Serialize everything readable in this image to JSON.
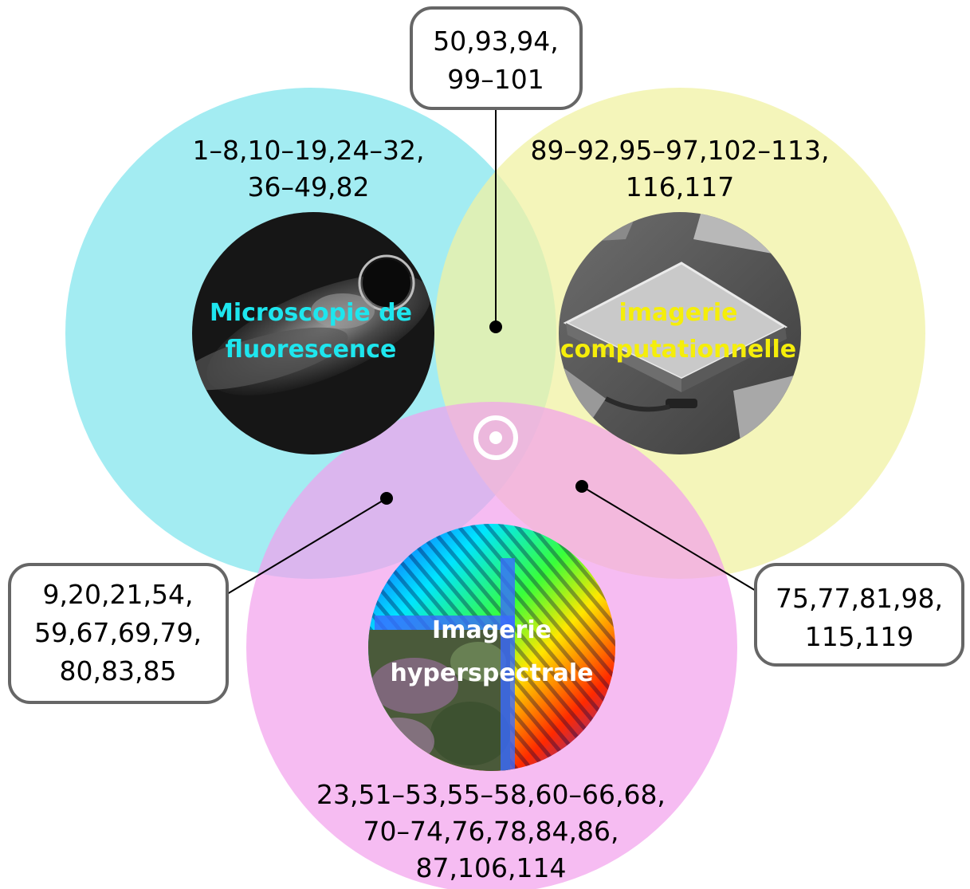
{
  "sets": {
    "fluorescence": {
      "label_lines": [
        "Microscopie de",
        "fluorescence"
      ],
      "refs_lines": [
        "1–8,10–19,24–32,",
        "36–49,82"
      ],
      "label_color": "#1ee6ee",
      "fill_color": "#9beaf1"
    },
    "computational": {
      "label_lines": [
        "imagerie",
        "computationnelle"
      ],
      "refs_lines": [
        "89–92,95–97,102–113,",
        "116,117"
      ],
      "label_color": "#f5ee0a",
      "fill_color": "#f0f2a3"
    },
    "hyperspectral": {
      "label_lines": [
        "Imagerie",
        "hyperspectrale"
      ],
      "refs_lines": [
        "23,51–53,55–58,60–66,68,",
        "70–74,76,78,84,86,",
        "87,106,114"
      ],
      "label_color": "#ffffff",
      "fill_color": "#f29fed"
    }
  },
  "intersections": {
    "fluorescence_computational": {
      "refs_lines": [
        "50,93,94,",
        "99–101"
      ]
    },
    "fluorescence_hyperspectral": {
      "refs_lines": [
        "9,20,21,54,",
        "59,67,69,79,",
        "80,83,85"
      ]
    },
    "computational_hyperspectral": {
      "refs_lines": [
        "75,77,81,98,",
        "115,119"
      ]
    },
    "center_symbol": "target-icon"
  }
}
